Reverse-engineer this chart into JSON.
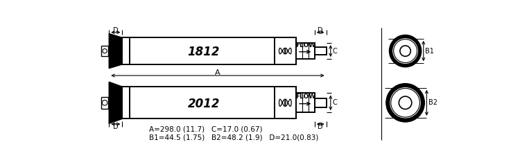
{
  "bg_color": "#ffffff",
  "fig_width": 7.5,
  "fig_height": 2.41,
  "dpi": 100,
  "label_A": "A",
  "label_B1": "B1",
  "label_B2": "B2",
  "label_C": "C",
  "label_D": "D",
  "label_1812": "1812",
  "label_2012": "2012",
  "label_FLOW": "FLOW",
  "dims_line1": "A=298.0 (11.7)   C=17.0 (0.67)",
  "dims_line2": "B1=44.5 (1.75)   B2=48.2 (1.9)   D=21.0(0.83)"
}
